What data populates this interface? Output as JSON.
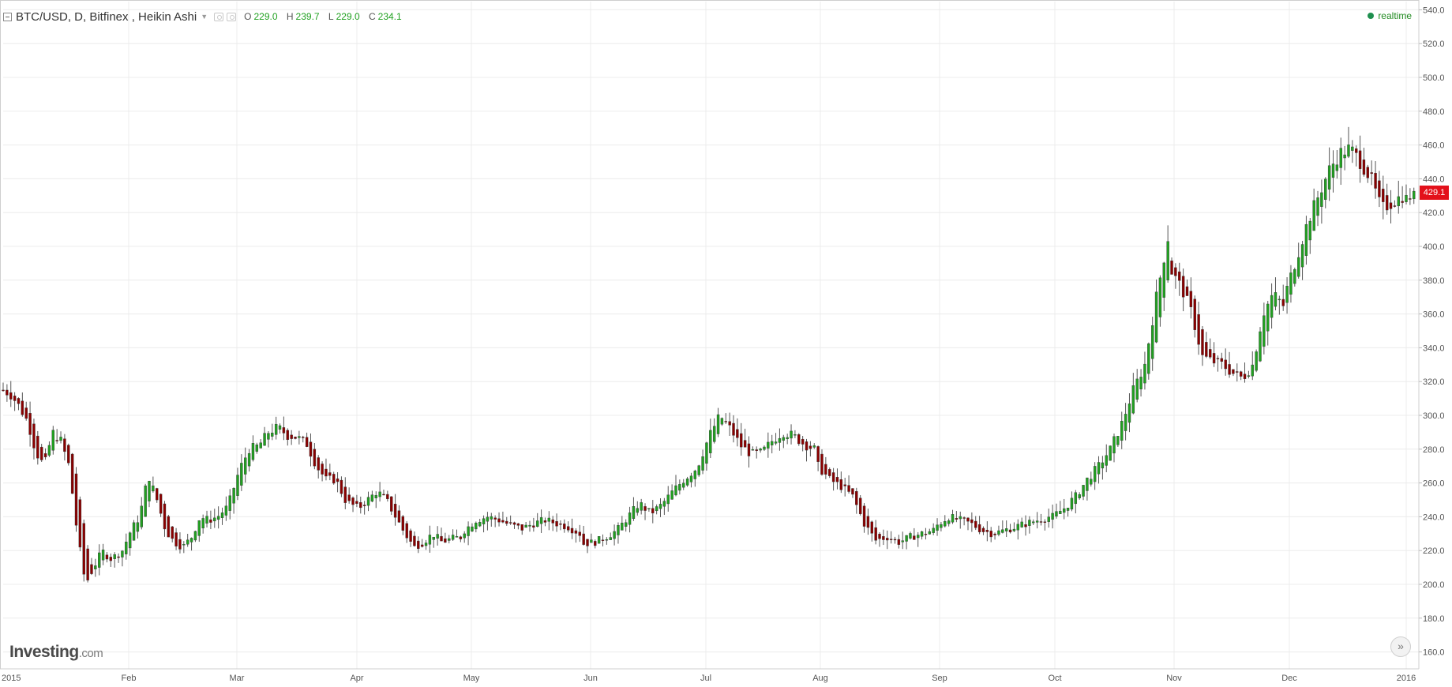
{
  "legend": {
    "title": "BTC/USD, D, Bitfinex , Heikin Ashi",
    "open_label": "O",
    "open_value": "229.0",
    "high_label": "H",
    "high_value": "239.7",
    "low_label": "L",
    "low_value": "229.0",
    "close_label": "C",
    "close_value": "234.1"
  },
  "status": {
    "realtime_label": "realtime"
  },
  "logo": {
    "name": "Investing",
    "suffix": ".com"
  },
  "last_price": "429.1",
  "colors": {
    "up": "#21a121",
    "down": "#8b0000",
    "grid": "#ececec",
    "axis_text": "#555555",
    "price_badge": "#e3101a",
    "realtime": "#1e8f4e"
  },
  "chart_data": {
    "type": "candlestick",
    "candle_style": "Heikin Ashi",
    "symbol": "BTC/USD",
    "interval": "D",
    "exchange": "Bitfinex",
    "y_ticks": [
      "160.0",
      "180.0",
      "200.0",
      "220.0",
      "240.0",
      "260.0",
      "280.0",
      "300.0",
      "320.0",
      "340.0",
      "360.0",
      "380.0",
      "400.0",
      "420.0",
      "440.0",
      "460.0",
      "480.0",
      "500.0",
      "520.0",
      "540.0"
    ],
    "x_ticks": [
      "2015",
      "Feb",
      "Mar",
      "Apr",
      "May",
      "Jun",
      "Jul",
      "Aug",
      "Sep",
      "Oct",
      "Nov",
      "Dec",
      "2016"
    ],
    "ylim": [
      150,
      543
    ],
    "grid": true,
    "legend_placement": "top-left",
    "monthly_anchors": [
      {
        "month": "2015-01",
        "points": [
          315,
          312,
          305,
          296,
          278,
          270,
          290,
          285,
          270,
          230,
          200,
          210,
          220,
          215,
          218
        ]
      },
      {
        "month": "2015-02",
        "points": [
          220,
          232,
          240,
          265,
          250,
          232,
          225,
          222,
          228,
          240,
          238,
          240,
          245
        ]
      },
      {
        "month": "2015-03",
        "points": [
          250,
          268,
          280,
          282,
          290,
          293,
          288,
          287,
          283,
          270,
          262,
          262,
          250
        ]
      },
      {
        "month": "2015-04",
        "points": [
          248,
          245,
          250,
          255,
          250,
          240,
          230,
          222,
          225,
          230,
          225,
          227,
          228
        ]
      },
      {
        "month": "2015-05",
        "points": [
          232,
          238,
          240,
          238,
          235,
          233,
          236,
          238,
          236,
          234,
          230
        ]
      },
      {
        "month": "2015-06",
        "points": [
          224,
          225,
          228,
          232,
          240,
          248,
          242,
          247,
          255,
          262,
          268
        ]
      },
      {
        "month": "2015-07",
        "points": [
          272,
          288,
          300,
          292,
          282,
          277,
          278,
          285,
          290,
          288,
          283,
          280
        ]
      },
      {
        "month": "2015-08",
        "points": [
          270,
          262,
          258,
          252,
          236,
          226,
          228,
          225,
          228,
          230,
          232
        ]
      },
      {
        "month": "2015-09",
        "points": [
          235,
          240,
          238,
          236,
          232,
          230,
          232,
          234,
          236,
          238,
          240
        ]
      },
      {
        "month": "2015-10",
        "points": [
          240,
          245,
          252,
          262,
          270,
          280,
          295,
          315,
          330,
          370,
          405
        ]
      },
      {
        "month": "2015-11",
        "points": [
          385,
          375,
          360,
          335,
          332,
          330,
          325,
          322,
          330,
          360,
          372,
          365
        ]
      },
      {
        "month": "2015-12",
        "points": [
          375,
          395,
          415,
          430,
          445,
          455,
          458,
          450,
          440,
          422,
          426,
          430
        ]
      }
    ]
  }
}
